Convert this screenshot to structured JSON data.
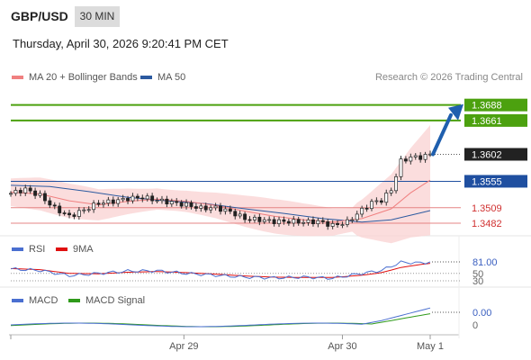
{
  "header": {
    "pair": "GBP/USD",
    "timeframe": "30 MIN",
    "datetime": "Thursday, April 30, 2026 9:20:41 PM CET"
  },
  "legend_main": [
    {
      "label": "MA 20 + Bollinger Bands",
      "color": "#f08080"
    },
    {
      "label": "MA 50",
      "color": "#2c5aa0"
    }
  ],
  "credit": "Research © 2026 Trading Central",
  "legend_rsi": [
    {
      "label": "RSI",
      "color": "#4a6fd0"
    },
    {
      "label": "9MA",
      "color": "#e01010"
    }
  ],
  "legend_macd": [
    {
      "label": "MACD",
      "color": "#4a6fd0"
    },
    {
      "label": "MACD Signal",
      "color": "#2f9a1a"
    }
  ],
  "colors": {
    "target": "#4ca10f",
    "support": "#e58484",
    "pivot": "#1f4fa0",
    "arrow": "#1f5fae",
    "band": "#f9d2d2"
  },
  "chart_data": {
    "type": "candlestick",
    "x_ticks": [
      "Apr 29",
      "Apr 30",
      "May 1"
    ],
    "price_levels": [
      {
        "value": 1.3688,
        "label": "1.3688",
        "kind": "target"
      },
      {
        "value": 1.3661,
        "label": "1.3661",
        "kind": "target"
      },
      {
        "value": 1.3602,
        "label": "1.3602",
        "kind": "last"
      },
      {
        "value": 1.3555,
        "label": "1.3555",
        "kind": "pivot"
      },
      {
        "value": 1.3509,
        "label": "1.3509",
        "kind": "support"
      },
      {
        "value": 1.3482,
        "label": "1.3482",
        "kind": "support"
      }
    ],
    "close_path": [
      [
        0,
        1.3534
      ],
      [
        3,
        1.3541
      ],
      [
        6,
        1.353
      ],
      [
        9,
        1.3508
      ],
      [
        12,
        1.3494
      ],
      [
        15,
        1.3505
      ],
      [
        18,
        1.3517
      ],
      [
        21,
        1.352
      ],
      [
        24,
        1.3525
      ],
      [
        27,
        1.3527
      ],
      [
        30,
        1.3522
      ],
      [
        33,
        1.3518
      ],
      [
        36,
        1.3514
      ],
      [
        39,
        1.3508
      ],
      [
        42,
        1.3509
      ],
      [
        45,
        1.3502
      ],
      [
        48,
        1.349
      ],
      [
        51,
        1.3488
      ],
      [
        54,
        1.3485
      ],
      [
        57,
        1.3485
      ],
      [
        60,
        1.3484
      ],
      [
        63,
        1.3485
      ],
      [
        66,
        1.3478
      ],
      [
        69,
        1.3484
      ],
      [
        72,
        1.3505
      ],
      [
        74,
        1.3518
      ],
      [
        76,
        1.3522
      ],
      [
        78,
        1.354
      ],
      [
        80,
        1.359
      ],
      [
        82,
        1.3597
      ],
      [
        84,
        1.3597
      ],
      [
        86,
        1.3602
      ]
    ],
    "ma50": [
      [
        0,
        1.3548
      ],
      [
        8,
        1.3546
      ],
      [
        16,
        1.3537
      ],
      [
        24,
        1.3527
      ],
      [
        32,
        1.3521
      ],
      [
        40,
        1.3516
      ],
      [
        48,
        1.3507
      ],
      [
        56,
        1.3499
      ],
      [
        64,
        1.349
      ],
      [
        72,
        1.3484
      ],
      [
        78,
        1.3488
      ],
      [
        86,
        1.3504
      ]
    ],
    "ma20": [
      [
        0,
        1.3536
      ],
      [
        6,
        1.3533
      ],
      [
        12,
        1.3521
      ],
      [
        18,
        1.3514
      ],
      [
        24,
        1.352
      ],
      [
        30,
        1.3524
      ],
      [
        36,
        1.352
      ],
      [
        42,
        1.3513
      ],
      [
        48,
        1.3503
      ],
      [
        54,
        1.3494
      ],
      [
        60,
        1.3488
      ],
      [
        66,
        1.3484
      ],
      [
        72,
        1.349
      ],
      [
        78,
        1.3507
      ],
      [
        82,
        1.3535
      ],
      [
        86,
        1.3557
      ]
    ],
    "rsi": {
      "levels": [
        {
          "value": 81.0,
          "label": "81.00",
          "kind": "current"
        },
        {
          "value": 50,
          "label": "50"
        },
        {
          "value": 30,
          "label": "30"
        }
      ],
      "rsi": [
        [
          0,
          62
        ],
        [
          6,
          58
        ],
        [
          12,
          44
        ],
        [
          18,
          50
        ],
        [
          24,
          56
        ],
        [
          30,
          57
        ],
        [
          36,
          50
        ],
        [
          42,
          45
        ],
        [
          48,
          40
        ],
        [
          54,
          38
        ],
        [
          60,
          40
        ],
        [
          66,
          37
        ],
        [
          72,
          50
        ],
        [
          76,
          58
        ],
        [
          80,
          80
        ],
        [
          84,
          78
        ],
        [
          86,
          81
        ]
      ],
      "ma9": [
        [
          0,
          63
        ],
        [
          6,
          60
        ],
        [
          12,
          50
        ],
        [
          18,
          49
        ],
        [
          24,
          53
        ],
        [
          30,
          55
        ],
        [
          36,
          52
        ],
        [
          42,
          48
        ],
        [
          48,
          43
        ],
        [
          54,
          40
        ],
        [
          60,
          39
        ],
        [
          66,
          39
        ],
        [
          72,
          45
        ],
        [
          76,
          52
        ],
        [
          80,
          66
        ],
        [
          84,
          74
        ],
        [
          86,
          77
        ]
      ]
    },
    "macd": {
      "levels": [
        {
          "value": 0.0,
          "label": "0.00",
          "kind": "current"
        },
        {
          "value": 0,
          "label": "0"
        }
      ]
    }
  }
}
